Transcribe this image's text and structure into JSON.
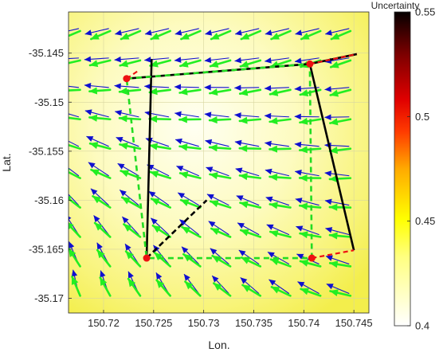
{
  "chart_data": {
    "type": "quiver",
    "xlabel": "Lon.",
    "ylabel": "Lat.",
    "xlim": [
      150.7165,
      150.7465
    ],
    "ylim": [
      -35.1715,
      -35.1408
    ],
    "xticks": [
      150.72,
      150.725,
      150.73,
      150.735,
      150.74,
      150.745
    ],
    "xtick_labels": [
      "150.72",
      "150.725",
      "150.73",
      "150.735",
      "150.74",
      "150.745"
    ],
    "yticks": [
      -35.145,
      -35.15,
      -35.155,
      -35.16,
      -35.165,
      -35.17
    ],
    "ytick_labels": [
      "-35.145",
      "-35.15",
      "-35.155",
      "-35.16",
      "-35.165",
      "-35.17"
    ],
    "colorbar": {
      "title": "Uncertainty",
      "range": [
        0.4,
        0.55
      ],
      "ticks": [
        0.4,
        0.45,
        0.5,
        0.55
      ],
      "tick_labels": [
        "0.4",
        "0.45",
        "0.5",
        "0.55"
      ],
      "colormap": "hot (reversed)"
    },
    "grid": true,
    "colors": {
      "field_low": "#fffde8",
      "field_high": "#f4f15a",
      "arrow_blue": "#1010d0",
      "arrow_green": "#22ee22",
      "track_black": "#000000",
      "track_green_dashed": "#22dd22",
      "track_red_dashed": "#ee1111",
      "station_red": "#ee1111"
    },
    "quiver": {
      "lon_start": 150.7175,
      "lon_step": 0.003,
      "lon_count": 10,
      "lat_start": -35.1425,
      "lat_step": -0.003,
      "lat_count": 10,
      "note": "blue and green arrow pairs at each grid node"
    },
    "paths": [
      {
        "style": "black-solid",
        "points": [
          [
            150.7248,
            -35.1456
          ],
          [
            150.7243,
            -35.1659
          ]
        ]
      },
      {
        "style": "black-solid",
        "points": [
          [
            150.7223,
            -35.1476
          ],
          [
            150.7406,
            -35.1461
          ],
          [
            150.7453,
            -35.1451
          ]
        ]
      },
      {
        "style": "black-solid",
        "points": [
          [
            150.7406,
            -35.1461
          ],
          [
            150.745,
            -35.1651
          ]
        ]
      },
      {
        "style": "black-dashed",
        "points": [
          [
            150.7243,
            -35.1659
          ],
          [
            150.7303,
            -35.16
          ]
        ]
      },
      {
        "style": "green-dashed",
        "points": [
          [
            150.7223,
            -35.1476
          ],
          [
            150.7406,
            -35.1461
          ],
          [
            150.7408,
            -35.1659
          ],
          [
            150.7243,
            -35.1659
          ],
          [
            150.7223,
            -35.1476
          ]
        ]
      },
      {
        "style": "red-dashed",
        "points": [
          [
            150.7406,
            -35.1461
          ],
          [
            150.7453,
            -35.1451
          ]
        ]
      },
      {
        "style": "red-dashed",
        "points": [
          [
            150.7408,
            -35.1659
          ],
          [
            150.745,
            -35.1651
          ]
        ]
      },
      {
        "style": "red-dashed",
        "points": [
          [
            150.7223,
            -35.1476
          ],
          [
            150.7236,
            -35.1467
          ]
        ]
      }
    ],
    "stations": [
      [
        150.7223,
        -35.1476
      ],
      [
        150.7406,
        -35.1461
      ],
      [
        150.7243,
        -35.1659
      ],
      [
        150.7408,
        -35.1659
      ]
    ]
  }
}
